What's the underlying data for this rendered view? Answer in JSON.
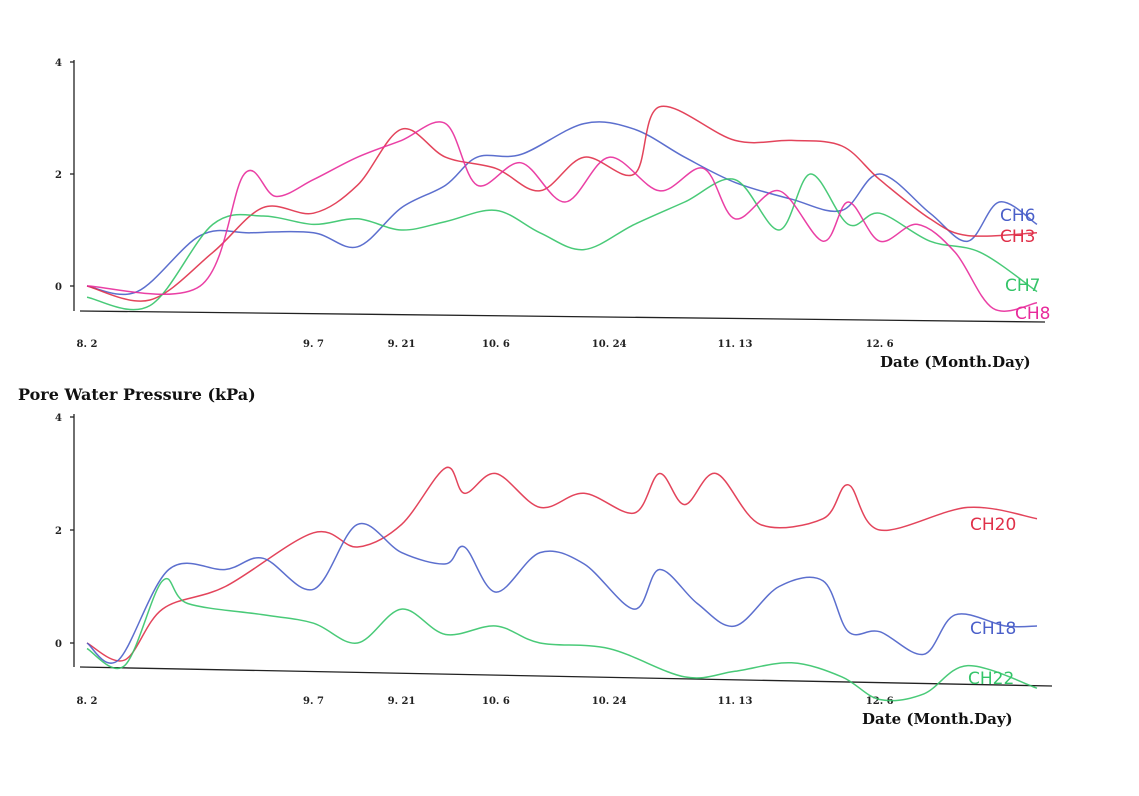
{
  "ylabel": "Pore Water Pressure (kPa)",
  "chart_data": [
    {
      "type": "line",
      "xlabel": "Date (Month.Day)",
      "ylabel": "Pore Water Pressure (kPa)",
      "ylim": [
        0,
        4
      ],
      "yticks": [
        "0",
        "2",
        "4"
      ],
      "xlim": [
        "2009-08-02",
        "2009-12-31"
      ],
      "xticks": [
        {
          "label": "8. 2",
          "date": "2009-08-02"
        },
        {
          "label": "9. 7",
          "date": "2009-09-07"
        },
        {
          "label": "9. 21",
          "date": "2009-09-21"
        },
        {
          "label": "10. 6",
          "date": "2009-10-06"
        },
        {
          "label": "10. 24",
          "date": "2009-10-24"
        },
        {
          "label": "11. 13",
          "date": "2009-11-13"
        },
        {
          "label": "12. 6",
          "date": "2009-12-06"
        }
      ],
      "series": [
        {
          "name": "CH6",
          "color": "#4a5fc9",
          "label_color": "#4a5fc9",
          "points": [
            [
              "2009-08-02",
              0.0
            ],
            [
              "2009-08-10",
              -0.1
            ],
            [
              "2009-08-20",
              0.9
            ],
            [
              "2009-08-28",
              0.95
            ],
            [
              "2009-09-07",
              0.95
            ],
            [
              "2009-09-14",
              0.7
            ],
            [
              "2009-09-21",
              1.4
            ],
            [
              "2009-09-28",
              1.8
            ],
            [
              "2009-10-03",
              2.3
            ],
            [
              "2009-10-10",
              2.35
            ],
            [
              "2009-10-20",
              2.9
            ],
            [
              "2009-10-28",
              2.8
            ],
            [
              "2009-11-05",
              2.3
            ],
            [
              "2009-11-13",
              1.85
            ],
            [
              "2009-11-22",
              1.55
            ],
            [
              "2009-11-30",
              1.35
            ],
            [
              "2009-12-06",
              2.0
            ],
            [
              "2009-12-14",
              1.3
            ],
            [
              "2009-12-20",
              0.8
            ],
            [
              "2009-12-25",
              1.5
            ],
            [
              "2009-12-31",
              1.1
            ]
          ]
        },
        {
          "name": "CH3",
          "color": "#e03049",
          "label_color": "#e03049",
          "points": [
            [
              "2009-08-02",
              0.0
            ],
            [
              "2009-08-12",
              -0.25
            ],
            [
              "2009-08-22",
              0.6
            ],
            [
              "2009-08-30",
              1.4
            ],
            [
              "2009-09-07",
              1.3
            ],
            [
              "2009-09-14",
              1.8
            ],
            [
              "2009-09-21",
              2.8
            ],
            [
              "2009-09-28",
              2.3
            ],
            [
              "2009-10-06",
              2.1
            ],
            [
              "2009-10-13",
              1.7
            ],
            [
              "2009-10-20",
              2.3
            ],
            [
              "2009-10-28",
              2.0
            ],
            [
              "2009-11-01",
              3.2
            ],
            [
              "2009-11-13",
              2.6
            ],
            [
              "2009-11-22",
              2.6
            ],
            [
              "2009-11-30",
              2.5
            ],
            [
              "2009-12-06",
              1.9
            ],
            [
              "2009-12-14",
              1.2
            ],
            [
              "2009-12-20",
              0.9
            ],
            [
              "2009-12-31",
              0.95
            ]
          ]
        },
        {
          "name": "CH7",
          "color": "#35c469",
          "label_color": "#35c469",
          "points": [
            [
              "2009-08-02",
              -0.2
            ],
            [
              "2009-08-12",
              -0.35
            ],
            [
              "2009-08-22",
              1.1
            ],
            [
              "2009-08-30",
              1.25
            ],
            [
              "2009-09-07",
              1.1
            ],
            [
              "2009-09-14",
              1.2
            ],
            [
              "2009-09-21",
              1.0
            ],
            [
              "2009-09-28",
              1.15
            ],
            [
              "2009-10-06",
              1.35
            ],
            [
              "2009-10-13",
              0.95
            ],
            [
              "2009-10-20",
              0.65
            ],
            [
              "2009-10-28",
              1.1
            ],
            [
              "2009-11-05",
              1.5
            ],
            [
              "2009-11-13",
              1.9
            ],
            [
              "2009-11-20",
              1.0
            ],
            [
              "2009-11-25",
              2.0
            ],
            [
              "2009-12-01",
              1.1
            ],
            [
              "2009-12-06",
              1.3
            ],
            [
              "2009-12-14",
              0.8
            ],
            [
              "2009-12-22",
              0.6
            ],
            [
              "2009-12-31",
              -0.1
            ]
          ]
        },
        {
          "name": "CH8",
          "color": "#e82b9b",
          "label_color": "#e82b9b",
          "points": [
            [
              "2009-08-02",
              0.0
            ],
            [
              "2009-08-20",
              0.0
            ],
            [
              "2009-08-27",
              2.0
            ],
            [
              "2009-09-01",
              1.6
            ],
            [
              "2009-09-07",
              1.9
            ],
            [
              "2009-09-14",
              2.3
            ],
            [
              "2009-09-21",
              2.6
            ],
            [
              "2009-09-28",
              2.9
            ],
            [
              "2009-10-03",
              1.8
            ],
            [
              "2009-10-10",
              2.2
            ],
            [
              "2009-10-17",
              1.5
            ],
            [
              "2009-10-24",
              2.3
            ],
            [
              "2009-11-01",
              1.7
            ],
            [
              "2009-11-08",
              2.1
            ],
            [
              "2009-11-13",
              1.2
            ],
            [
              "2009-11-20",
              1.7
            ],
            [
              "2009-11-27",
              0.8
            ],
            [
              "2009-12-01",
              1.5
            ],
            [
              "2009-12-06",
              0.8
            ],
            [
              "2009-12-12",
              1.1
            ],
            [
              "2009-12-18",
              0.6
            ],
            [
              "2009-12-24",
              -0.4
            ],
            [
              "2009-12-31",
              -0.3
            ]
          ]
        }
      ]
    },
    {
      "type": "line",
      "xlabel": "Date (Month.Day)",
      "ylabel": "Pore Water Pressure (kPa)",
      "ylim": [
        0,
        4
      ],
      "yticks": [
        "0",
        "2",
        "4"
      ],
      "xlim": [
        "2009-08-02",
        "2009-12-31"
      ],
      "xticks": [
        {
          "label": "8. 2",
          "date": "2009-08-02"
        },
        {
          "label": "9. 7",
          "date": "2009-09-07"
        },
        {
          "label": "9. 21",
          "date": "2009-09-21"
        },
        {
          "label": "10. 6",
          "date": "2009-10-06"
        },
        {
          "label": "10. 24",
          "date": "2009-10-24"
        },
        {
          "label": "11. 13",
          "date": "2009-11-13"
        },
        {
          "label": "12. 6",
          "date": "2009-12-06"
        }
      ],
      "series": [
        {
          "name": "CH20",
          "color": "#e03049",
          "label_color": "#e03049",
          "points": [
            [
              "2009-08-02",
              0.0
            ],
            [
              "2009-08-08",
              -0.3
            ],
            [
              "2009-08-14",
              0.6
            ],
            [
              "2009-08-24",
              1.0
            ],
            [
              "2009-09-07",
              1.95
            ],
            [
              "2009-09-14",
              1.7
            ],
            [
              "2009-09-21",
              2.1
            ],
            [
              "2009-09-28",
              3.1
            ],
            [
              "2009-10-01",
              2.65
            ],
            [
              "2009-10-06",
              3.0
            ],
            [
              "2009-10-13",
              2.4
            ],
            [
              "2009-10-20",
              2.65
            ],
            [
              "2009-10-28",
              2.3
            ],
            [
              "2009-11-01",
              3.0
            ],
            [
              "2009-11-05",
              2.45
            ],
            [
              "2009-11-10",
              3.0
            ],
            [
              "2009-11-17",
              2.1
            ],
            [
              "2009-11-27",
              2.2
            ],
            [
              "2009-12-01",
              2.8
            ],
            [
              "2009-12-06",
              2.0
            ],
            [
              "2009-12-20",
              2.4
            ],
            [
              "2009-12-31",
              2.2
            ]
          ]
        },
        {
          "name": "CH18",
          "color": "#4a5fc9",
          "label_color": "#4a5fc9",
          "points": [
            [
              "2009-08-02",
              0.0
            ],
            [
              "2009-08-07",
              -0.3
            ],
            [
              "2009-08-15",
              1.3
            ],
            [
              "2009-08-24",
              1.3
            ],
            [
              "2009-08-30",
              1.5
            ],
            [
              "2009-09-07",
              0.95
            ],
            [
              "2009-09-14",
              2.1
            ],
            [
              "2009-09-21",
              1.6
            ],
            [
              "2009-09-28",
              1.4
            ],
            [
              "2009-10-01",
              1.7
            ],
            [
              "2009-10-06",
              0.9
            ],
            [
              "2009-10-13",
              1.6
            ],
            [
              "2009-10-20",
              1.4
            ],
            [
              "2009-10-28",
              0.6
            ],
            [
              "2009-11-01",
              1.3
            ],
            [
              "2009-11-07",
              0.7
            ],
            [
              "2009-11-13",
              0.3
            ],
            [
              "2009-11-20",
              1.0
            ],
            [
              "2009-11-27",
              1.1
            ],
            [
              "2009-12-01",
              0.2
            ],
            [
              "2009-12-06",
              0.2
            ],
            [
              "2009-12-13",
              -0.2
            ],
            [
              "2009-12-18",
              0.5
            ],
            [
              "2009-12-26",
              0.3
            ],
            [
              "2009-12-31",
              0.3
            ]
          ]
        },
        {
          "name": "CH22",
          "color": "#35c469",
          "label_color": "#35c469",
          "points": [
            [
              "2009-08-02",
              -0.1
            ],
            [
              "2009-08-08",
              -0.4
            ],
            [
              "2009-08-14",
              1.1
            ],
            [
              "2009-08-18",
              0.7
            ],
            [
              "2009-08-30",
              0.5
            ],
            [
              "2009-09-07",
              0.35
            ],
            [
              "2009-09-14",
              0.0
            ],
            [
              "2009-09-21",
              0.6
            ],
            [
              "2009-09-28",
              0.15
            ],
            [
              "2009-10-06",
              0.3
            ],
            [
              "2009-10-13",
              0.0
            ],
            [
              "2009-10-24",
              -0.1
            ],
            [
              "2009-11-05",
              -0.6
            ],
            [
              "2009-11-13",
              -0.5
            ],
            [
              "2009-11-22",
              -0.35
            ],
            [
              "2009-11-30",
              -0.6
            ],
            [
              "2009-12-06",
              -1.0
            ],
            [
              "2009-12-13",
              -0.9
            ],
            [
              "2009-12-20",
              -0.4
            ],
            [
              "2009-12-31",
              -0.8
            ]
          ]
        }
      ]
    }
  ]
}
